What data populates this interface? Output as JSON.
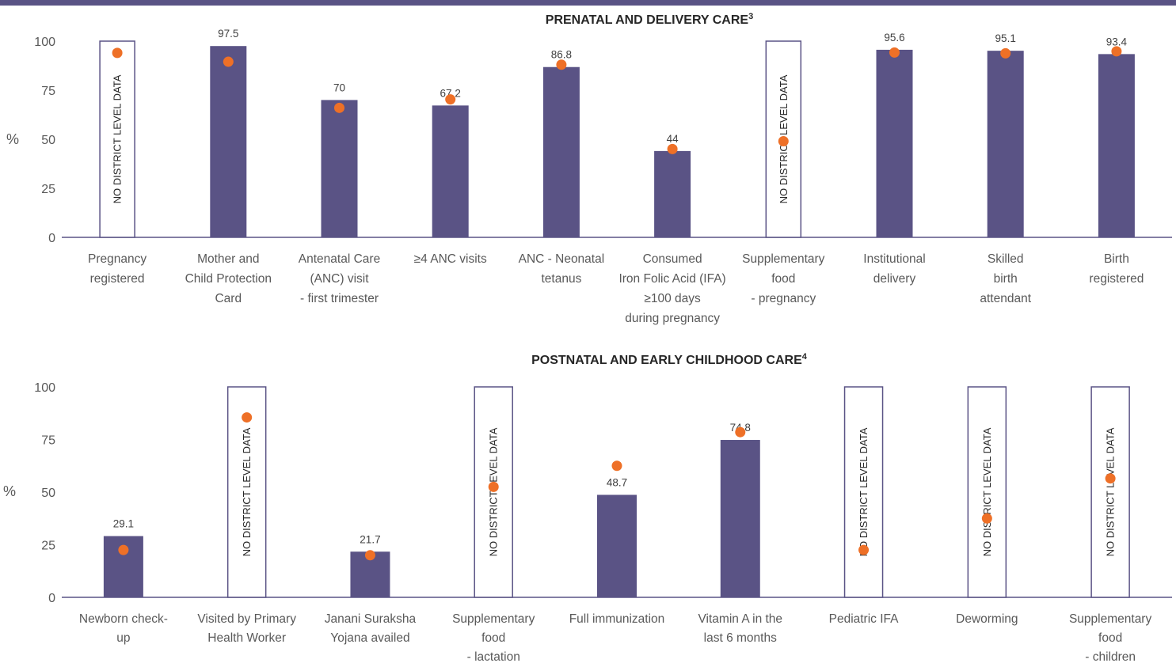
{
  "colors": {
    "bar": "#5a5385",
    "dot": "#ee7027",
    "axis": "#5a5385",
    "topbar": "#5a5385",
    "nodata_border": "#5a5385"
  },
  "chart_data": [
    {
      "type": "bar",
      "title": "PRENATAL AND DELIVERY CARE",
      "title_sup": "3",
      "ylabel": "%",
      "ylim": [
        0,
        100
      ],
      "yticks": [
        0,
        25,
        50,
        75,
        100
      ],
      "grid": false,
      "categories": [
        [
          "Pregnancy",
          "registered"
        ],
        [
          "Mother and",
          "Child Protection",
          "Card"
        ],
        [
          "Antenatal Care",
          "(ANC) visit",
          "- first trimester"
        ],
        [
          "≥4 ANC visits"
        ],
        [
          "ANC - Neonatal",
          "tetanus"
        ],
        [
          "Consumed",
          "Iron Folic Acid (IFA)",
          "≥100 days",
          "during pregnancy"
        ],
        [
          "Supplementary",
          "food",
          "- pregnancy"
        ],
        [
          "Institutional",
          "delivery"
        ],
        [
          "Skilled",
          "birth",
          "attendant"
        ],
        [
          "Birth",
          "registered"
        ]
      ],
      "series": [
        {
          "kind": "bar",
          "values": [
            null,
            97.5,
            70,
            67.2,
            86.8,
            44,
            null,
            95.6,
            95.1,
            93.4
          ]
        },
        {
          "kind": "dot",
          "values": [
            94,
            89.5,
            66,
            70.3,
            88,
            45,
            49,
            94.2,
            93.8,
            94.8
          ]
        }
      ],
      "data_labels": [
        "",
        "97.5",
        "70",
        "67.2",
        "86.8",
        "44",
        "",
        "95.6",
        "95.1",
        "93.4"
      ],
      "no_data_text": "NO DISTRICT LEVEL DATA"
    },
    {
      "type": "bar",
      "title": "POSTNATAL AND EARLY CHILDHOOD CARE",
      "title_sup": "4",
      "ylabel": "%",
      "ylim": [
        0,
        100
      ],
      "yticks": [
        0,
        25,
        50,
        75,
        100
      ],
      "grid": false,
      "categories": [
        [
          "Newborn check-",
          "up"
        ],
        [
          "Visited by Primary",
          "Health Worker"
        ],
        [
          "Janani Suraksha",
          "Yojana availed"
        ],
        [
          "Supplementary",
          "food",
          "- lactation"
        ],
        [
          "Full immunization"
        ],
        [
          "Vitamin A in the",
          "last 6 months"
        ],
        [
          "Pediatric IFA"
        ],
        [
          "Deworming"
        ],
        [
          "Supplementary",
          "food",
          "- children"
        ]
      ],
      "series": [
        {
          "kind": "bar",
          "values": [
            29.1,
            null,
            21.7,
            null,
            48.7,
            74.8,
            null,
            null,
            null
          ]
        },
        {
          "kind": "dot",
          "values": [
            22.5,
            85.5,
            20,
            52.5,
            62.5,
            78.5,
            22.5,
            37.5,
            56.5
          ]
        }
      ],
      "data_labels": [
        "29.1",
        "",
        "21.7",
        "",
        "48.7",
        "74.8",
        "",
        "",
        ""
      ],
      "no_data_text": "NO DISTRICT LEVEL DATA"
    }
  ]
}
